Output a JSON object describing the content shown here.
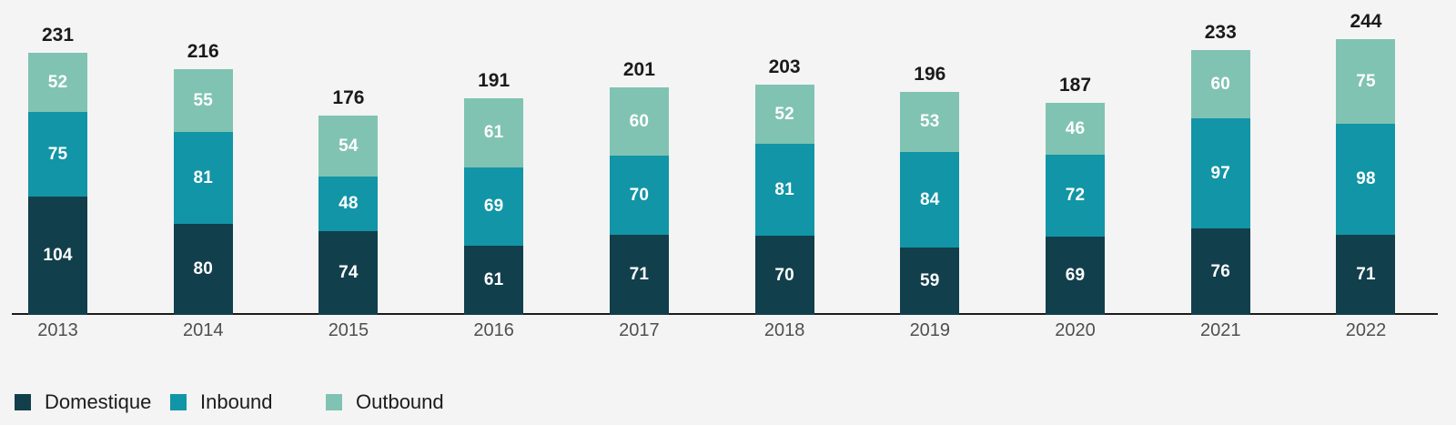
{
  "chart_data": {
    "type": "bar",
    "stacked": true,
    "title": "",
    "xlabel": "",
    "ylabel": "",
    "grid": false,
    "legend_position": "bottom-left",
    "value_labels": "white-inside-segments",
    "total_labels": "bold-above-bars",
    "categories": [
      "2013",
      "2014",
      "2015",
      "2016",
      "2017",
      "2018",
      "2019",
      "2020",
      "2021",
      "2022"
    ],
    "series": [
      {
        "name": "Domestique",
        "color": "#123f4c",
        "values": [
          104,
          80,
          74,
          61,
          71,
          70,
          59,
          69,
          76,
          71
        ]
      },
      {
        "name": "Inbound",
        "color": "#1295a6",
        "values": [
          75,
          81,
          48,
          69,
          70,
          81,
          84,
          72,
          97,
          98
        ]
      },
      {
        "name": "Outbound",
        "color": "#80c3b2",
        "values": [
          52,
          55,
          54,
          61,
          60,
          52,
          53,
          46,
          60,
          75
        ]
      }
    ],
    "totals": [
      231,
      216,
      176,
      191,
      201,
      203,
      196,
      187,
      233,
      244
    ]
  },
  "colors": {
    "background": "#f4f4f4",
    "axis_line": "#1c1c1c",
    "total_label": "#1a1a1a",
    "segment_value_label": "#ffffff",
    "tick_label": "#4f4f4f",
    "legend_label": "#1c1c1c"
  },
  "legend": {
    "items": [
      {
        "label": "Domestique"
      },
      {
        "label": "Inbound"
      },
      {
        "label": "Outbound"
      }
    ]
  }
}
